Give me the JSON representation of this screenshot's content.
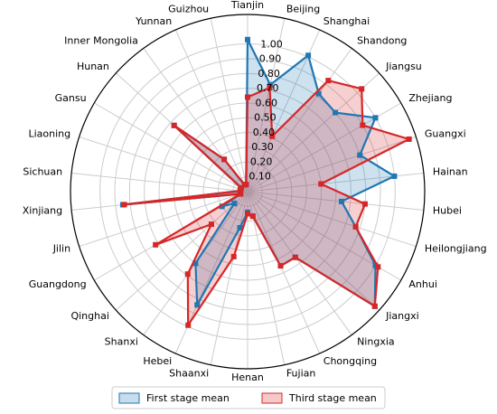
{
  "chart_data": {
    "type": "radar",
    "categories": [
      "Tianjin",
      "Beijing",
      "Shanghai",
      "Shandong",
      "Jiangsu",
      "Zhejiang",
      "Guangxi",
      "Hainan",
      "Hubei",
      "Heilongjiang",
      "Anhui",
      "Jiangxi",
      "Ningxia",
      "Chongqing",
      "Fujian",
      "Henan",
      "Shaanxi",
      "Hebei",
      "Shanxi",
      "Qinghai",
      "Guangdong",
      "Jilin",
      "Xinjiang",
      "Sichuan",
      "Liaoning",
      "Gansu",
      "Hunan",
      "Inner Mongolia",
      "Yunnan",
      "Guizhou"
    ],
    "series": [
      {
        "name": "First stage mean",
        "color": "#1f77b4",
        "values": [
          1.03,
          0.74,
          1.01,
          0.82,
          0.8,
          1.0,
          0.8,
          1.0,
          0.64,
          0.77,
          1.0,
          1.16,
          0.55,
          0.55,
          0.17,
          0.14,
          0.25,
          0.84,
          0.6,
          0.12,
          0.2,
          0.05,
          0.85,
          0.05,
          0.05,
          0.05,
          0.67,
          0.27,
          0.05,
          0.05
        ]
      },
      {
        "name": "Third stage mean",
        "color": "#d62728",
        "values": [
          0.64,
          0.72,
          0.41,
          0.93,
          1.04,
          0.9,
          1.15,
          0.5,
          0.8,
          0.77,
          1.02,
          1.16,
          0.55,
          0.55,
          0.17,
          0.15,
          0.45,
          0.99,
          0.69,
          0.33,
          0.72,
          0.05,
          0.84,
          0.05,
          0.05,
          0.05,
          0.67,
          0.27,
          0.05,
          0.05
        ]
      }
    ],
    "ylim": [
      0,
      1.2
    ],
    "yticks": [
      {
        "value": 0.1,
        "label": "0.10"
      },
      {
        "value": 0.2,
        "label": "0.20"
      },
      {
        "value": 0.3,
        "label": "0.30"
      },
      {
        "value": 0.4,
        "label": "0.40"
      },
      {
        "value": 0.5,
        "label": "0.50"
      },
      {
        "value": 0.6,
        "label": "0.60"
      },
      {
        "value": 0.7,
        "label": "0.70"
      },
      {
        "value": 0.8,
        "label": "0.80"
      },
      {
        "value": 0.9,
        "label": "0.90"
      },
      {
        "value": 1.0,
        "label": "1.00"
      }
    ],
    "grid": true,
    "legend": "bottom"
  }
}
